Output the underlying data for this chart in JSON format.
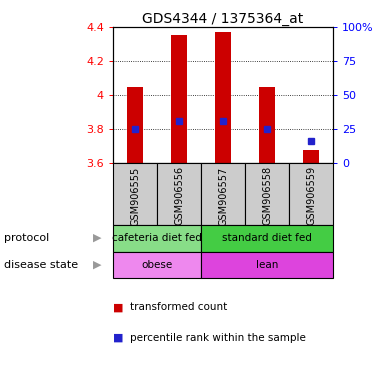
{
  "title": "GDS4344 / 1375364_at",
  "samples": [
    "GSM906555",
    "GSM906556",
    "GSM906557",
    "GSM906558",
    "GSM906559"
  ],
  "bar_values": [
    4.05,
    4.35,
    4.37,
    4.05,
    3.68
  ],
  "bar_base": 3.6,
  "blue_values": [
    3.8,
    3.845,
    3.845,
    3.8,
    3.73
  ],
  "ylim": [
    3.6,
    4.4
  ],
  "yticks_left": [
    3.6,
    3.8,
    4.0,
    4.2,
    4.4
  ],
  "ytick_left_labels": [
    "3.6",
    "3.8",
    "4",
    "4.2",
    "4.4"
  ],
  "yticks_right_pct": [
    0,
    25,
    50,
    75,
    100
  ],
  "ytick_right_labels": [
    "0",
    "25",
    "50",
    "75",
    "100%"
  ],
  "bar_color": "#cc0000",
  "blue_color": "#2222cc",
  "protocol_groups": [
    {
      "label": "cafeteria diet fed",
      "span": [
        0,
        2
      ],
      "color": "#88dd88"
    },
    {
      "label": "standard diet fed",
      "span": [
        2,
        5
      ],
      "color": "#44cc44"
    }
  ],
  "disease_groups": [
    {
      "label": "obese",
      "span": [
        0,
        2
      ],
      "color": "#ee88ee"
    },
    {
      "label": "lean",
      "span": [
        2,
        5
      ],
      "color": "#dd44dd"
    }
  ],
  "protocol_label": "protocol",
  "disease_label": "disease state",
  "legend_items": [
    {
      "label": "transformed count",
      "color": "#cc0000"
    },
    {
      "label": "percentile rank within the sample",
      "color": "#2222cc"
    }
  ],
  "title_fontsize": 10,
  "tick_fontsize": 8,
  "annotation_fontsize": 8,
  "sample_fontsize": 7,
  "bar_width": 0.35
}
